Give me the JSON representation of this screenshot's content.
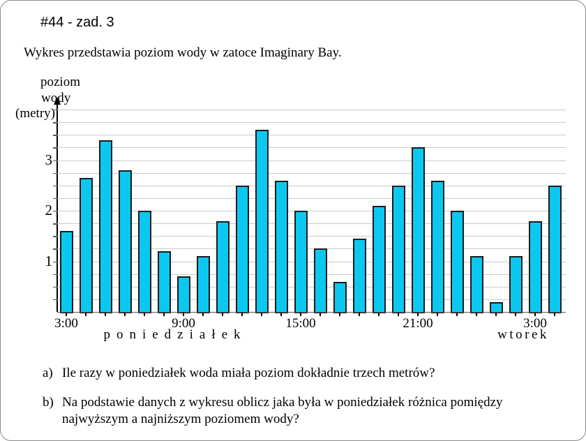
{
  "page": {
    "title": "#44 - zad. 3",
    "subtitle": "Wykres przedstawia poziom wody w zatoce Imaginary Bay."
  },
  "chart_data": {
    "type": "bar",
    "title": "",
    "ylabel_lines": [
      "poziom",
      "wody",
      "(metry)"
    ],
    "x": [
      "3:00",
      "4:00",
      "5:00",
      "6:00",
      "7:00",
      "8:00",
      "9:00",
      "10:00",
      "11:00",
      "12:00",
      "13:00",
      "14:00",
      "15:00",
      "16:00",
      "17:00",
      "18:00",
      "19:00",
      "20:00",
      "21:00",
      "22:00",
      "23:00",
      "0:00",
      "1:00",
      "2:00",
      "3:00",
      "4:00"
    ],
    "values": [
      1.6,
      2.65,
      3.4,
      2.8,
      2.0,
      1.2,
      0.7,
      1.1,
      1.8,
      2.5,
      3.6,
      2.6,
      2.0,
      1.25,
      0.6,
      1.45,
      2.1,
      2.5,
      3.25,
      2.6,
      2.0,
      1.1,
      0.2,
      1.1,
      1.8,
      2.5
    ],
    "x_tick_labels": [
      {
        "index": 0,
        "label": "3:00"
      },
      {
        "index": 6,
        "label": "9:00"
      },
      {
        "index": 12,
        "label": "15:00"
      },
      {
        "index": 18,
        "label": "21:00"
      },
      {
        "index": 24,
        "label": "3:00"
      }
    ],
    "y_ticks": [
      1,
      2,
      3
    ],
    "ylim": [
      0,
      4
    ],
    "grid_step": 0.25,
    "grid_on": true,
    "legend": "none",
    "day_labels": {
      "monday": "poniedziałek",
      "tuesday": "wtorek"
    },
    "bar_color": "#0BC8F0",
    "bar_border_color": "#1b1b1b",
    "grid_color": "#c9c9c9"
  },
  "questions": {
    "a_prefix": "a)",
    "a_text": "Ile razy w poniedziałek woda miała poziom dokładnie trzech metrów?",
    "b_prefix": "b)",
    "b_text_line1": "Na podstawie danych z wykresu oblicz jaka była w poniedziałek różnica pomiędzy",
    "b_text_line2": "najwyższym a najniższym poziomem wody?"
  }
}
